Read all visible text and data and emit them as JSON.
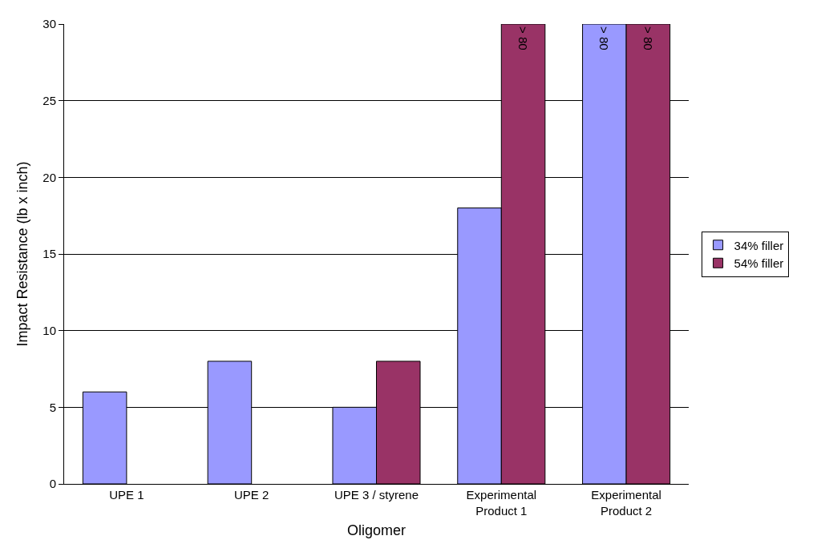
{
  "chart_data": {
    "type": "bar",
    "xlabel": "Oligomer",
    "ylabel": "Impact Resistance (lb x inch)",
    "categories": [
      "UPE 1",
      "UPE 2",
      "UPE 3 / styrene",
      "Experimental Product 1",
      "Experimental Product 2"
    ],
    "series": [
      {
        "name": "34% filler",
        "color": "#9999ff",
        "values": [
          6,
          8,
          5,
          18,
          30
        ],
        "value_labels": [
          null,
          null,
          null,
          null,
          "> 80"
        ]
      },
      {
        "name": "54% filler",
        "color": "#993366",
        "values": [
          null,
          null,
          8,
          30,
          30
        ],
        "value_labels": [
          null,
          null,
          null,
          "> 80",
          "> 80"
        ]
      }
    ],
    "ylim": [
      0,
      30
    ],
    "yticks": [
      0,
      5,
      10,
      15,
      20,
      25,
      30
    ],
    "grid": "y",
    "legend": "right"
  }
}
